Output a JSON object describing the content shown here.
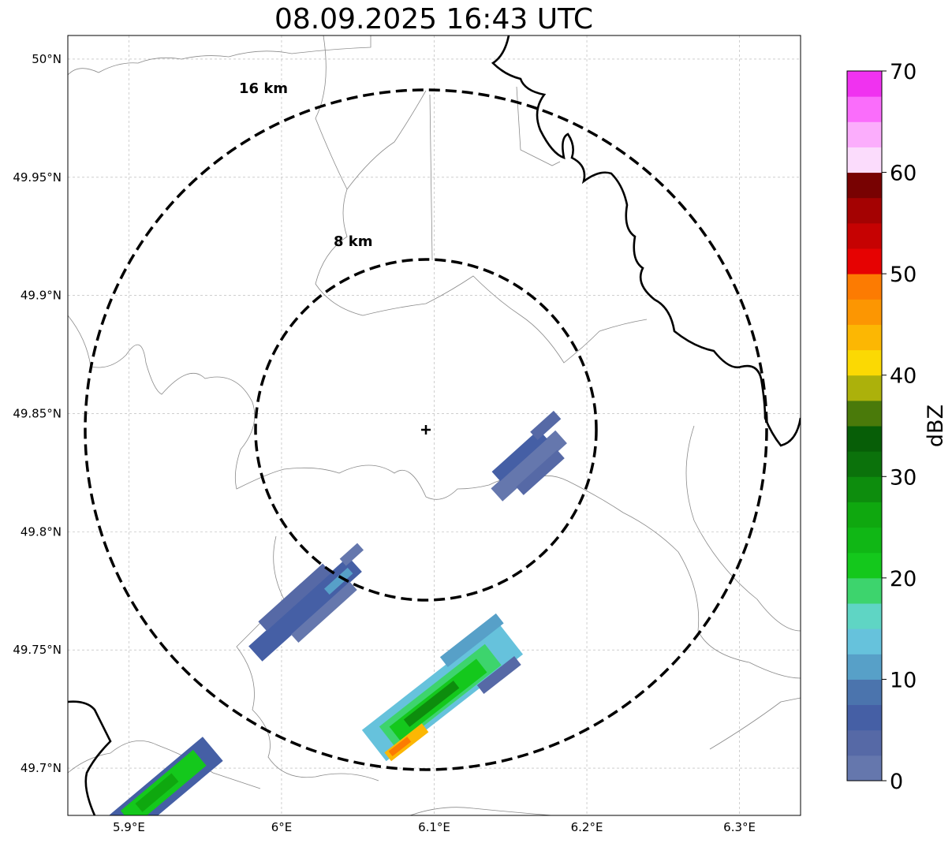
{
  "title": "08.09.2025 16:43 UTC",
  "map": {
    "lon_range": [
      5.86,
      6.34
    ],
    "lat_range": [
      49.68,
      50.01
    ],
    "lon_ticks": [
      5.9,
      6.0,
      6.1,
      6.2,
      6.3
    ],
    "lon_tick_labels": [
      "5.9°E",
      "6°E",
      "6.1°E",
      "6.2°E",
      "6.3°E"
    ],
    "lat_ticks": [
      50.0,
      49.95,
      49.9,
      49.85,
      49.8,
      49.75,
      49.7
    ],
    "lat_tick_labels": [
      "50°N",
      "49.95°N",
      "49.9°N",
      "49.85°N",
      "49.8°N",
      "49.75°N",
      "49.7°N"
    ],
    "gridlines": true,
    "radar_center": {
      "lon": 6.095,
      "lat": 49.843
    },
    "range_rings": [
      {
        "radius_km": 8,
        "label": "8 km"
      },
      {
        "radius_km": 16,
        "label": "16 km"
      }
    ]
  },
  "colorbar": {
    "label": "dBZ",
    "ticks": [
      0,
      10,
      20,
      30,
      40,
      50,
      60,
      70
    ],
    "tick_labels": [
      "0",
      "10",
      "20",
      "30",
      "40",
      "50",
      "60",
      "70"
    ],
    "bin_width": 2.5,
    "colors": [
      "#6577ad",
      "#5669a6",
      "#455fa5",
      "#4b74ad",
      "#57a0c8",
      "#66c2dc",
      "#5fd5c4",
      "#3dd46d",
      "#14c81c",
      "#10b715",
      "#0fa80f",
      "#0d8d0d",
      "#0b720b",
      "#075e07",
      "#4a7a0a",
      "#acb10b",
      "#fbd903",
      "#fcb703",
      "#fc9602",
      "#fc7b02",
      "#e60202",
      "#c60202",
      "#a40202",
      "#780202",
      "#fbdcfc",
      "#fbadfc",
      "#fa6dfb",
      "#f032f0"
    ]
  },
  "reflectivity_cells": [
    {
      "name": "echo-east-light",
      "lon": 6.152,
      "lat": 49.828,
      "dbz": 3
    },
    {
      "name": "echo-west-light",
      "lon": 6.005,
      "lat": 49.768,
      "dbz": 5
    },
    {
      "name": "echo-south-convective",
      "lon": 6.095,
      "lat": 49.725,
      "dbz": 46
    },
    {
      "name": "echo-southwest-edge",
      "lon": 5.92,
      "lat": 49.69,
      "dbz": 24
    }
  ]
}
